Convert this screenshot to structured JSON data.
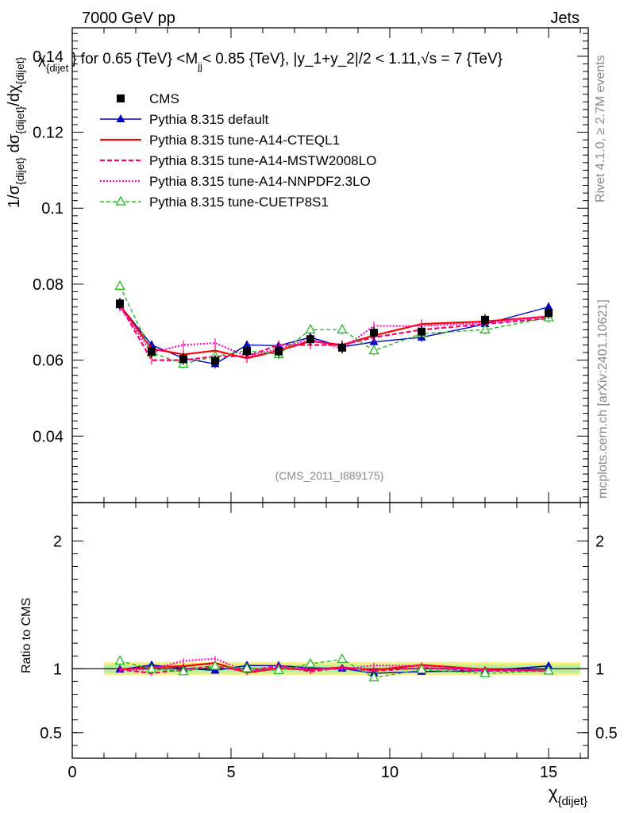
{
  "header": {
    "left": "7000 GeV pp",
    "right": "Jets"
  },
  "side_labels": {
    "rivet": "Rivet 4.1.0, ≥ 2.7M events",
    "mcplots": "mcplots.cern.ch [arXiv:2401.10621]"
  },
  "chart_data": {
    "type": "line",
    "title": "χ_{dijet} } for 0.65 {TeV} <M_jj< 0.85 {TeV}, |y_1+y_2|/2 < 1.11,√s = 7 {TeV}",
    "title_parts": {
      "a": "χ",
      "a_sub": "{dijet",
      "b": "} for 0.65 {TeV} <M",
      "b_sub": "jj",
      "c": "< 0.85 {TeV}, |y_1+y_2|/2 < 1.11,√s = 7 {TeV}"
    },
    "ylabel": "1/σ_{dijet} dσ_{dijet}/dχ_{dijet}",
    "ylabel_parts": {
      "p1": "1/σ",
      "s1": "{dijet}",
      "p2": " dσ",
      "s2": "{dijet}",
      "p3": "/dχ",
      "s3": "{dijet}"
    },
    "xlabel": "χ_{dijet}",
    "xlabel_parts": {
      "main": "χ",
      "sub": "{dijet}"
    },
    "ratio_ylabel": "Ratio to CMS",
    "watermark": "(CMS_2011_I889175)",
    "xlim": [
      0,
      16.25
    ],
    "ylim": [
      0.0225,
      0.1475
    ],
    "ratio_ylim": [
      0.3,
      2.3
    ],
    "x_ticks": [
      0,
      5,
      10,
      15
    ],
    "y_ticks": [
      0.04,
      0.06,
      0.08,
      0.1,
      0.12,
      0.14
    ],
    "y_tick_labels": [
      "0.04",
      "0.06",
      "0.08",
      "0.1",
      "0.12",
      "0.14"
    ],
    "ratio_ticks": [
      0.5,
      1,
      2
    ],
    "ratio_tick_labels": [
      "0.5",
      "1",
      "2"
    ],
    "x": [
      1.5,
      2.5,
      3.5,
      4.5,
      5.5,
      6.5,
      7.5,
      8.5,
      9.5,
      11.0,
      13.0,
      15.0
    ],
    "x_edges": [
      1,
      2,
      3,
      4,
      5,
      6,
      7,
      8,
      9,
      10,
      12,
      14,
      16
    ],
    "data": {
      "name": "CMS",
      "values": [
        0.0749,
        0.0622,
        0.0603,
        0.0598,
        0.0624,
        0.0623,
        0.0655,
        0.0633,
        0.0672,
        0.0675,
        0.0706,
        0.0724
      ],
      "errors": [
        0.0015,
        0.0015,
        0.0015,
        0.0015,
        0.0015,
        0.0015,
        0.0015,
        0.0015,
        0.0015,
        0.0015,
        0.0015,
        0.0015
      ]
    },
    "ratio_band": {
      "inner": 0.03,
      "outer": 0.05
    },
    "series": [
      {
        "name": "Pythia 8.315 default",
        "color": "#0000cc",
        "dash": "",
        "marker": "triangle-filled",
        "values": [
          0.0745,
          0.064,
          0.0605,
          0.059,
          0.064,
          0.0638,
          0.066,
          0.0635,
          0.0648,
          0.066,
          0.0695,
          0.074
        ]
      },
      {
        "name": "Pythia 8.315 tune-A14-CTEQL1",
        "color": "#ff0000",
        "dash": "",
        "marker": "none",
        "values": [
          0.0745,
          0.063,
          0.0615,
          0.0625,
          0.0605,
          0.0625,
          0.065,
          0.064,
          0.0665,
          0.0695,
          0.0702,
          0.0715
        ]
      },
      {
        "name": "Pythia 8.315 tune-A14-MSTW2008LO",
        "color": "#ff0066",
        "dash": "6,3",
        "marker": "none",
        "values": [
          0.0745,
          0.06,
          0.06,
          0.061,
          0.061,
          0.064,
          0.064,
          0.064,
          0.066,
          0.068,
          0.0695,
          0.071
        ]
      },
      {
        "name": "Pythia 8.315 tune-A14-NNPDF2.3LO",
        "color": "#ff00cc",
        "dash": "2,2",
        "marker": "none",
        "values": [
          0.074,
          0.062,
          0.064,
          0.0645,
          0.061,
          0.063,
          0.0655,
          0.063,
          0.069,
          0.069,
          0.0698,
          0.0715
        ]
      },
      {
        "name": "Pythia 8.315 tune-CUETP8S1",
        "color": "#22bb22",
        "dash": "5,3",
        "marker": "triangle-open",
        "values": [
          0.0795,
          0.062,
          0.059,
          0.061,
          0.0625,
          0.0615,
          0.068,
          0.068,
          0.0625,
          0.067,
          0.068,
          0.0712
        ]
      }
    ],
    "legend_position": "top-left"
  }
}
